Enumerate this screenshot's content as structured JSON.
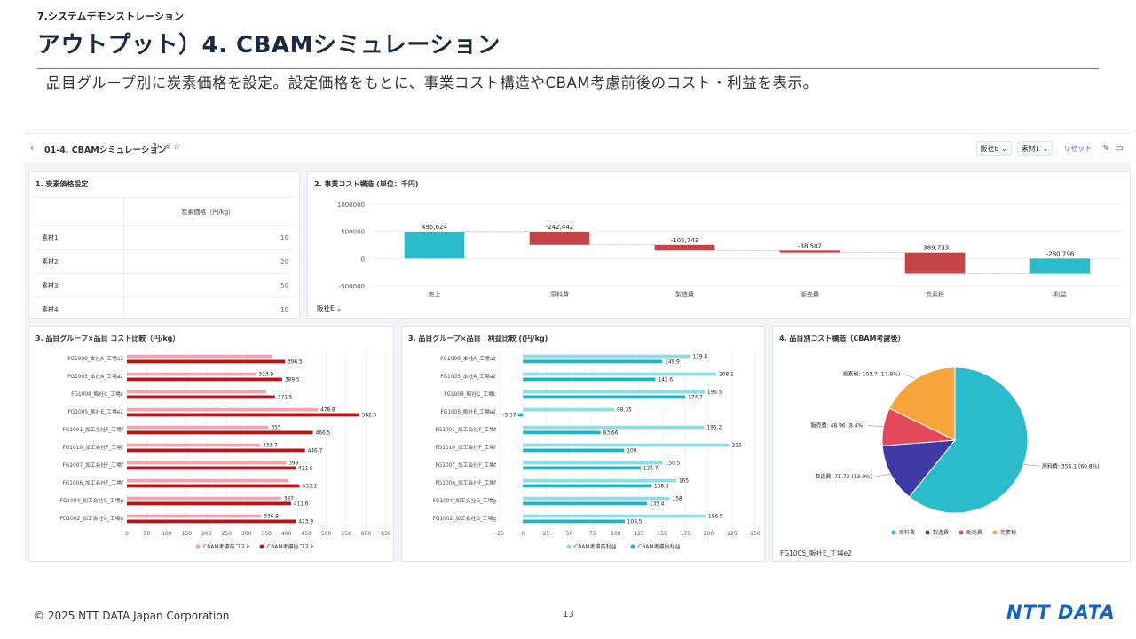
{
  "slide": {
    "section": "7.システムデモンストレーション",
    "title": "アウトプット）4. CBAMシミュレーション",
    "subtitle": "品目グループ別に炭素価格を設定。設定価格をもとに、事業コスト構造やCBAM考慮前後のコスト・利益を表示。",
    "copyright": "© 2025 NTT DATA Japan Corporation",
    "page_number": "13",
    "logo_text": "NTT DATA"
  },
  "dashboard": {
    "back_icon": "chevron-left-icon",
    "title": "01-4. CBAMシミュレーション",
    "title_icons": [
      "refresh-icon",
      "share-icon",
      "star-icon"
    ],
    "filter1": "販社E",
    "filter2": "素材1",
    "reset_label": "リセット",
    "toolbar_icons": [
      "edit-icon",
      "comment-icon"
    ]
  },
  "carbon_price": {
    "title": "1. 炭素価格設定",
    "column_header": "炭素価格（円/kg）",
    "rows": [
      {
        "name": "素材1",
        "value": "10"
      },
      {
        "name": "素材2",
        "value": "20"
      },
      {
        "name": "素材3",
        "value": "50"
      },
      {
        "name": "素材4",
        "value": "10"
      }
    ],
    "value_color": "#7b4bd8"
  },
  "waterfall": {
    "title": "2. 事業コスト構造 (単位：千円)",
    "filter_label": "販社E",
    "colors": {
      "positive": "#2bbccb",
      "negative": "#c64447"
    }
  },
  "cost_compare": {
    "title": "3. 品目グループ×品目 コスト比較（円/kg）",
    "colors": {
      "before": "#f0a5b0",
      "after": "#b3171d"
    }
  },
  "profit_compare": {
    "title": "3. 品目グループ×品目　利益比較 ((円/kg)",
    "colors": {
      "before": "#8fdde4",
      "after": "#1fb5c3"
    }
  },
  "pie_card": {
    "title": "4. 品目別コスト構造（CBAM考慮後）",
    "caption": "FG1005_販社E_工場e2"
  },
  "chart_data": [
    {
      "type": "bar",
      "subtype": "waterfall",
      "categories": [
        "売上",
        "原料費",
        "製造費",
        "販売費",
        "炭素税",
        "利益"
      ],
      "values": [
        495624,
        -242442,
        -105743,
        -38502,
        -389733,
        -280796
      ],
      "value_labels": [
        "495,624",
        "-242,442",
        "-105,743",
        "-38,502",
        "-389,733",
        "-280,796"
      ],
      "yticks": [
        "1000000",
        "500000",
        "0",
        "-500000"
      ],
      "ylim": [
        -500000,
        1000000
      ],
      "grid": true
    },
    {
      "type": "bar",
      "orientation": "horizontal",
      "categories": [
        "FG1009_本社A_工場a2",
        "FG1003_本社A_工場a2",
        "FG1008_販社C_工場c",
        "FG1005_販社E_工場e2",
        "FG1001_加工会社F_工場f",
        "FG1010_加工会社F_工場f",
        "FG1007_加工会社F_工場f",
        "FG1006_加工会社F_工場f",
        "FG1004_加工会社G_工場g",
        "FG1002_加工会社G_工場g"
      ],
      "series": [
        {
          "name": "CBAM考慮前コスト",
          "values": [
            365,
            323.9,
            349,
            478.8,
            355,
            333.7,
            399,
            405,
            387,
            336.8
          ],
          "labels": [
            "",
            "323.9",
            "",
            "478.8",
            "355",
            "333.7",
            "399",
            "",
            "387",
            "336.8"
          ]
        },
        {
          "name": "CBAM考慮後コスト",
          "values": [
            396.5,
            389.5,
            371.5,
            582.5,
            466.5,
            446.7,
            422.9,
            433.1,
            411.6,
            423.9
          ],
          "labels": [
            "396.5",
            "389.5",
            "371.5",
            "582.5",
            "466.5",
            "446.7",
            "422.9",
            "433.1",
            "411.6",
            "423.9"
          ]
        }
      ],
      "xticks": [
        "0",
        "50",
        "100",
        "150",
        "200",
        "250",
        "300",
        "350",
        "400",
        "450",
        "500",
        "550",
        "600",
        "650"
      ],
      "xlim": [
        0,
        650
      ],
      "legend": "bottom",
      "grid": true
    },
    {
      "type": "bar",
      "orientation": "horizontal",
      "categories": [
        "FG1009_本社A_工場a2",
        "FG1003_本社A_工場a2",
        "FG1008_販社C_工場c",
        "FG1005_販社E_工場e2",
        "FG1001_加工会社F_工場f",
        "FG1010_加工会社F_工場f",
        "FG1007_加工会社F_工場f",
        "FG1006_加工会社F_工場f",
        "FG1004_加工会社G_工場g",
        "FG1002_加工会社G_工場g"
      ],
      "series": [
        {
          "name": "CBAM考慮前利益",
          "values": [
            179.8,
            208.1,
            195.5,
            98.35,
            195.2,
            222,
            150.5,
            165,
            158,
            196.5
          ],
          "labels": [
            "179.8",
            "208.1",
            "195.5",
            "98.35",
            "195.2",
            "222",
            "150.5",
            "165",
            "158",
            "196.5"
          ]
        },
        {
          "name": "CBAM考慮後利益",
          "values": [
            149.9,
            142.6,
            174.7,
            -5.37,
            83.66,
            109,
            126.7,
            138.3,
            133.4,
            109.5
          ],
          "labels": [
            "149.9",
            "142.6",
            "174.7",
            "-5.37",
            "83.66",
            "109",
            "126.7",
            "138.3",
            "133.4",
            "109.5"
          ]
        }
      ],
      "xticks": [
        "-25",
        "0",
        "25",
        "50",
        "75",
        "100",
        "125",
        "150",
        "175",
        "200",
        "225",
        "250"
      ],
      "xlim": [
        -25,
        250
      ],
      "legend": "bottom",
      "grid": true
    },
    {
      "type": "pie",
      "slices": [
        {
          "name": "原料費",
          "value": 354.1,
          "label": "原料費: 354.1 (60.8%)",
          "color": "#2bbccb"
        },
        {
          "name": "製造費",
          "value": 75.72,
          "label": "製造費: 75.72 (13.0%)",
          "color": "#3f3aa3"
        },
        {
          "name": "販売費",
          "value": 48.96,
          "label": "販売費: 48.96 (8.4%)",
          "color": "#e2495b"
        },
        {
          "name": "炭素税",
          "value": 103.7,
          "label": "炭素税: 103.7 (17.8%)",
          "color": "#f7a43a"
        }
      ],
      "legend": "bottom"
    }
  ]
}
